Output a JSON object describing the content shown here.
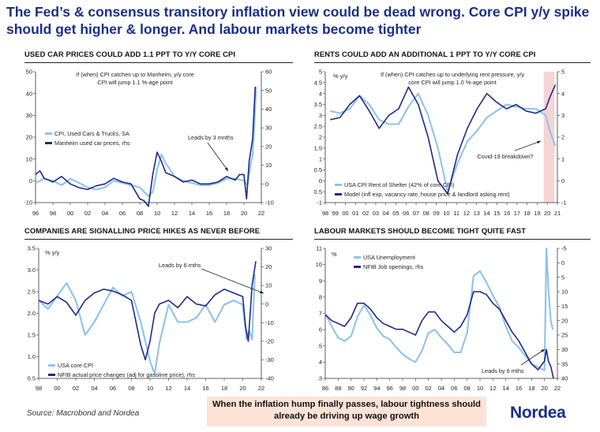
{
  "headline": "The Fed’s & consensus transitory inflation view could be dead wrong. Core CPI y/y spike should get higher & longer. And labour markets become tighter",
  "source": "Source: Macrobond and Nordea",
  "callout": "When the inflation hump finally passes, labour tightness should already be driving up wage growth",
  "brand": "Nordea",
  "colors": {
    "light_series": "#8fc3ea",
    "dark_series": "#1f2a86",
    "headline": "#1a2f8a",
    "shade": "#f2c9c9",
    "callout_bg": "#fde3d7"
  },
  "chart_data": [
    {
      "type": "line",
      "title": "USED CAR PRICES COULD ADD 1.1 PPT TO Y/Y CORE CPI",
      "x_ticks": [
        "96",
        "98",
        "00",
        "02",
        "04",
        "06",
        "08",
        "10",
        "12",
        "14",
        "16",
        "18",
        "20",
        "22"
      ],
      "x_range": [
        1996,
        2022
      ],
      "y_left_ticks": [
        "50",
        "40",
        "30",
        "20",
        "10",
        "0",
        "-10"
      ],
      "y_left_range": [
        -10,
        50
      ],
      "y_right_ticks": [
        "60",
        "50",
        "40",
        "30",
        "20",
        "10",
        "0",
        "-10"
      ],
      "y_right_range": [
        -10,
        60
      ],
      "grid": false,
      "legend_position": "left",
      "series": [
        {
          "name": "CPI, Used Cars & Trucks, SA",
          "axis": "left",
          "color": "#8fc3ea",
          "x": [
            1996,
            1997,
            1998,
            1999,
            2000,
            2001,
            2002,
            2003,
            2004,
            2005,
            2006,
            2007,
            2008,
            2009,
            2009.5,
            2010,
            2010.5,
            2011,
            2012,
            2013,
            2014,
            2015,
            2016,
            2017,
            2018,
            2019,
            2020,
            2020.4,
            2020.8,
            2021,
            2021.2,
            2021.4
          ],
          "y": [
            -1,
            1,
            0,
            -2,
            1,
            -1,
            -3,
            -4,
            -3,
            0,
            -1,
            -2,
            -3,
            -7,
            -5,
            5,
            12,
            8,
            2,
            0,
            -1,
            -2,
            -2,
            -1,
            1,
            1,
            0,
            -2,
            8,
            12,
            25,
            43
          ]
        },
        {
          "name": "Manheim used car prices, rhs",
          "axis": "right",
          "color": "#1f2a86",
          "x": [
            1996,
            1996.5,
            1997,
            1998,
            1999,
            2000,
            2001,
            2002,
            2003,
            2004,
            2005,
            2006,
            2007,
            2008,
            2008.5,
            2009,
            2009.5,
            2010,
            2010.5,
            2011,
            2012,
            2013,
            2014,
            2015,
            2016,
            2017,
            2018,
            2019,
            2019.5,
            2020,
            2020.3,
            2020.6,
            2021,
            2021.3
          ],
          "y": [
            5,
            7,
            3,
            1,
            4,
            0,
            -2,
            -3,
            -1,
            0,
            3,
            1,
            0,
            -8,
            -9,
            -12,
            5,
            17,
            12,
            6,
            4,
            1,
            2,
            0,
            0,
            1,
            4,
            2,
            5,
            5,
            -8,
            12,
            24,
            52
          ]
        }
      ],
      "annotations": [
        "If (when) CPI catches up to Manheim, y/y core CPI will jump 1.1 %-age point",
        "Leads by 3 mnths"
      ]
    },
    {
      "type": "line",
      "title": "RENTS COULD ADD AN ADDITIONAL 1 PPT TO Y/Y CORE CPI",
      "unit_label": "% y/y",
      "x_ticks": [
        "98",
        "99",
        "00",
        "01",
        "02",
        "03",
        "04",
        "05",
        "06",
        "07",
        "08",
        "09",
        "10",
        "11",
        "12",
        "13",
        "14",
        "15",
        "16",
        "17",
        "18",
        "19",
        "20",
        "21"
      ],
      "x_range": [
        1997.5,
        2021.2
      ],
      "y_left_ticks": [
        "5",
        "4.5",
        "4",
        "3.5",
        "3",
        "2.5",
        "2",
        "1.5",
        "1",
        "0.5",
        "0",
        "-0.5",
        "-1"
      ],
      "y_left_range": [
        -1,
        5
      ],
      "y_right_ticks": [
        "5",
        "4",
        "3",
        "2",
        "1",
        "0",
        "-1"
      ],
      "y_right_range": [
        -1,
        5
      ],
      "grid": false,
      "legend_position": "bottom-left",
      "shaded_x_range": [
        2019.8,
        2020.9
      ],
      "series": [
        {
          "name": "USA CPI Rent of Shelter (42% of core CPI)",
          "axis": "left",
          "color": "#8fc3ea",
          "x": [
            1998,
            1999,
            2000,
            2001,
            2002,
            2003,
            2004,
            2005,
            2006,
            2007,
            2008,
            2009,
            2010,
            2011,
            2012,
            2013,
            2014,
            2015,
            2016,
            2017,
            2018,
            2019,
            2020,
            2020.5,
            2021
          ],
          "y": [
            3.2,
            3.1,
            3.3,
            3.9,
            3.5,
            2.8,
            2.6,
            2.6,
            3.4,
            4.0,
            3.0,
            1.5,
            -0.5,
            0.8,
            1.8,
            2.3,
            2.9,
            3.2,
            3.5,
            3.4,
            3.3,
            3.3,
            3.0,
            2.2,
            1.6
          ]
        },
        {
          "name": "Model (infl exp, vacancy rate, house price & landlord asking rent)",
          "axis": "right",
          "color": "#1f2a86",
          "x": [
            1998,
            1999,
            2000,
            2001,
            2002,
            2003,
            2004,
            2005,
            2006,
            2007,
            2008,
            2009,
            2010,
            2011,
            2012,
            2013,
            2014,
            2015,
            2016,
            2017,
            2018,
            2019,
            2020,
            2020.5,
            2021
          ],
          "y": [
            2.8,
            2.9,
            3.5,
            3.9,
            3.2,
            2.4,
            3.0,
            3.3,
            4.3,
            3.5,
            2.0,
            0.0,
            -0.6,
            1.2,
            2.4,
            3.3,
            4.0,
            3.6,
            3.3,
            3.5,
            3.2,
            3.1,
            3.3,
            3.9,
            4.4
          ]
        }
      ],
      "annotations": [
        "If (when) CPI catches up to underlying rent pressure, y/y core CPI will jump 1.0 %-age point",
        "Covid-19 breakdown?"
      ]
    },
    {
      "type": "line",
      "title": "COMPANIES ARE SIGNALLING PRICE HIKES AS NEVER BEFORE",
      "unit_label": "% y/y",
      "x_ticks": [
        "98",
        "00",
        "02",
        "04",
        "06",
        "08",
        "10",
        "12",
        "14",
        "16",
        "18",
        "20",
        "22"
      ],
      "x_range": [
        1998,
        2022
      ],
      "y_left_ticks": [
        "3.5",
        "3.0",
        "2.5",
        "2.0",
        "1.5",
        "1.0",
        "0.5"
      ],
      "y_left_range": [
        0.5,
        3.5
      ],
      "y_right_ticks": [
        "30",
        "20",
        "10",
        "0",
        "-10",
        "-20",
        "-30",
        "-40"
      ],
      "y_right_range": [
        -40,
        30
      ],
      "grid": false,
      "legend_position": "bottom-left",
      "series": [
        {
          "name": "USA core CPI",
          "axis": "left",
          "color": "#8fc3ea",
          "x": [
            1998,
            1999,
            2000,
            2001,
            2002,
            2003,
            2004,
            2005,
            2006,
            2007,
            2008,
            2009,
            2010,
            2010.5,
            2011,
            2012,
            2013,
            2014,
            2015,
            2016,
            2017,
            2018,
            2019,
            2020,
            2020.4,
            2020.7,
            2021,
            2021.3
          ],
          "y": [
            2.3,
            2.1,
            2.4,
            2.7,
            2.3,
            1.5,
            1.8,
            2.2,
            2.6,
            2.4,
            2.5,
            1.8,
            0.9,
            0.6,
            1.3,
            2.2,
            1.8,
            1.8,
            1.9,
            2.2,
            1.8,
            2.2,
            2.3,
            2.2,
            1.4,
            1.6,
            1.4,
            2.9
          ]
        },
        {
          "name": "NFIB actual price changes (adj for gasoline price), rhs",
          "axis": "right",
          "color": "#1f2a86",
          "x": [
            1998,
            1999,
            2000,
            2001,
            2002,
            2003,
            2004,
            2005,
            2006,
            2007,
            2008,
            2009,
            2009.5,
            2010,
            2010.5,
            2011,
            2012,
            2013,
            2014,
            2015,
            2016,
            2017,
            2018,
            2019,
            2020,
            2020.3,
            2020.6,
            2021,
            2021.4
          ],
          "y": [
            2,
            0,
            4,
            1,
            -6,
            2,
            6,
            8,
            7,
            5,
            2,
            -22,
            -30,
            -20,
            -5,
            0,
            2,
            -2,
            4,
            0,
            -1,
            5,
            8,
            6,
            4,
            -12,
            -20,
            10,
            23
          ]
        }
      ],
      "annotations": [
        "Leads by 6 mths"
      ]
    },
    {
      "type": "line",
      "title": "LABOUR MARKETS SHOULD BECOME TIGHT QUITE FAST",
      "unit_label": "%",
      "x_ticks": [
        "86",
        "88",
        "90",
        "92",
        "94",
        "96",
        "98",
        "00",
        "02",
        "04",
        "06",
        "08",
        "10",
        "12",
        "14",
        "16",
        "18",
        "20",
        "22"
      ],
      "x_range": [
        1986,
        2022
      ],
      "y_left_ticks": [
        "11",
        "10",
        "9",
        "8",
        "7",
        "6",
        "5",
        "4",
        "3"
      ],
      "y_left_range": [
        3,
        11
      ],
      "y_right_ticks": [
        "-5",
        "0",
        "5",
        "10",
        "15",
        "20",
        "25",
        "30",
        "35",
        "40"
      ],
      "y_right_range": [
        -5,
        40
      ],
      "y_right_inverted": true,
      "grid": false,
      "legend_position": "top-left",
      "series": [
        {
          "name": "USA Unemployment",
          "axis": "left",
          "color": "#8fc3ea",
          "x": [
            1986,
            1987,
            1988,
            1989,
            1990,
            1991,
            1992,
            1993,
            1994,
            1995,
            1996,
            1997,
            1998,
            1999,
            2000,
            2001,
            2002,
            2003,
            2004,
            2005,
            2006,
            2007,
            2008,
            2009,
            2010,
            2011,
            2012,
            2013,
            2014,
            2015,
            2016,
            2017,
            2018,
            2019,
            2020,
            2020.3,
            2020.6,
            2021,
            2021.3
          ],
          "y": [
            7.0,
            6.2,
            5.5,
            5.3,
            5.6,
            6.8,
            7.5,
            6.9,
            6.1,
            5.6,
            5.4,
            4.9,
            4.5,
            4.2,
            4.0,
            4.7,
            5.8,
            6.0,
            5.5,
            5.1,
            4.6,
            4.6,
            5.8,
            9.3,
            9.6,
            8.9,
            8.1,
            7.4,
            6.2,
            5.3,
            4.9,
            4.4,
            3.9,
            3.7,
            3.5,
            11.0,
            8.5,
            6.5,
            6.0
          ]
        },
        {
          "name": "NFIB Job openings, rhs",
          "axis": "right",
          "color": "#1f2a86",
          "x": [
            1986,
            1987,
            1988,
            1989,
            1990,
            1991,
            1992,
            1993,
            1994,
            1995,
            1996,
            1997,
            1998,
            1999,
            2000,
            2001,
            2002,
            2003,
            2004,
            2005,
            2006,
            2007,
            2008,
            2009,
            2010,
            2011,
            2012,
            2013,
            2014,
            2015,
            2016,
            2017,
            2018,
            2019,
            2020,
            2020.3,
            2020.6,
            2021,
            2021.4
          ],
          "y": [
            18,
            20,
            21,
            22,
            19,
            14,
            14,
            16,
            19,
            21,
            22,
            23,
            23,
            24,
            25,
            20,
            17,
            17,
            20,
            22,
            24,
            22,
            18,
            10,
            10,
            11,
            14,
            16,
            20,
            24,
            27,
            31,
            35,
            37,
            34,
            30,
            34,
            36,
            40
          ]
        }
      ],
      "annotations": [
        "Leads by 6 mths"
      ]
    }
  ]
}
